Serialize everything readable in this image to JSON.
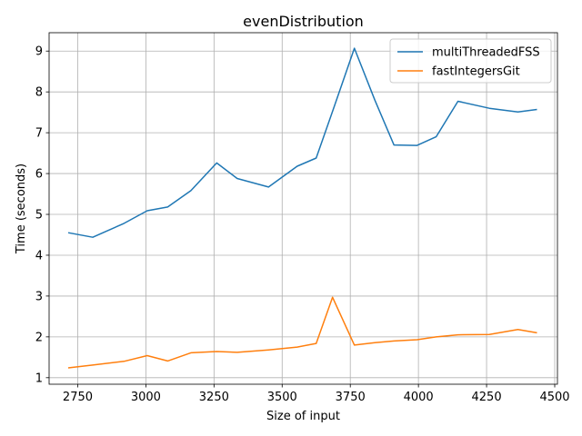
{
  "chart_data": {
    "type": "line",
    "title": "evenDistribution",
    "xlabel": "Size of input",
    "ylabel": "Time (seconds)",
    "xlim": [
      2645,
      4510
    ],
    "ylim": [
      0.84,
      9.45
    ],
    "xticks": [
      2750,
      3000,
      3250,
      3500,
      3750,
      4000,
      4250,
      4500
    ],
    "yticks": [
      1,
      2,
      3,
      4,
      5,
      6,
      7,
      8,
      9
    ],
    "grid": true,
    "legend_position": "top-right",
    "series": [
      {
        "name": "multiThreadedFSS",
        "color": "#1f77b4",
        "x": [
          2715,
          2805,
          2920,
          3005,
          3080,
          3165,
          3260,
          3335,
          3450,
          3555,
          3625,
          3690,
          3765,
          3840,
          3910,
          3995,
          4065,
          4145,
          4260,
          4365,
          4435
        ],
        "y": [
          4.55,
          4.44,
          4.78,
          5.09,
          5.18,
          5.58,
          6.26,
          5.88,
          5.67,
          6.18,
          6.38,
          7.62,
          9.07,
          7.8,
          6.7,
          6.69,
          6.9,
          7.77,
          7.6,
          7.51,
          7.57
        ]
      },
      {
        "name": "fastIntegersGit",
        "color": "#ff7f0e",
        "x": [
          2715,
          2805,
          2920,
          3005,
          3080,
          3165,
          3260,
          3335,
          3450,
          3555,
          3625,
          3685,
          3765,
          3840,
          3910,
          3995,
          4065,
          4145,
          4260,
          4365,
          4435
        ],
        "y": [
          1.24,
          1.31,
          1.4,
          1.54,
          1.41,
          1.61,
          1.64,
          1.62,
          1.68,
          1.75,
          1.84,
          2.97,
          1.8,
          1.86,
          1.9,
          1.93,
          2.0,
          2.05,
          2.06,
          2.18,
          2.1
        ]
      }
    ]
  }
}
